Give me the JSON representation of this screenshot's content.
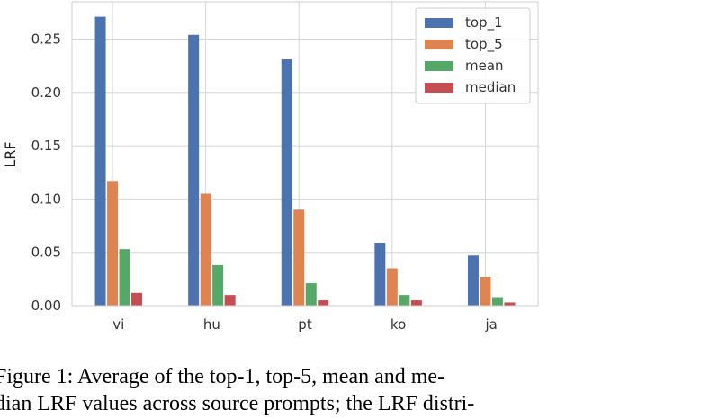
{
  "chart_data": {
    "type": "bar",
    "title": "",
    "xlabel": "",
    "ylabel": "LRF",
    "categories": [
      "vi",
      "hu",
      "pt",
      "ko",
      "ja"
    ],
    "series": [
      {
        "name": "top_1",
        "color": "#4c72b0",
        "values": [
          0.271,
          0.254,
          0.231,
          0.059,
          0.047
        ]
      },
      {
        "name": "top_5",
        "color": "#dd8452",
        "values": [
          0.117,
          0.105,
          0.09,
          0.035,
          0.027
        ]
      },
      {
        "name": "mean",
        "color": "#55a868",
        "values": [
          0.053,
          0.038,
          0.021,
          0.01,
          0.008
        ]
      },
      {
        "name": "median",
        "color": "#c44e52",
        "values": [
          0.012,
          0.01,
          0.005,
          0.005,
          0.003
        ]
      }
    ],
    "ylim": [
      0,
      0.285
    ],
    "yticks": [
      0.0,
      0.05,
      0.1,
      0.15,
      0.2,
      0.25
    ],
    "ytick_labels": [
      "0.00",
      "0.05",
      "0.10",
      "0.15",
      "0.20",
      "0.25"
    ],
    "grid": true,
    "legend_position": "top-right"
  },
  "caption": {
    "line1": "Figure 1: Average of the top-1, top-5, mean and me-",
    "line2": "dian LRF values across source prompts; the LRF distri-"
  }
}
